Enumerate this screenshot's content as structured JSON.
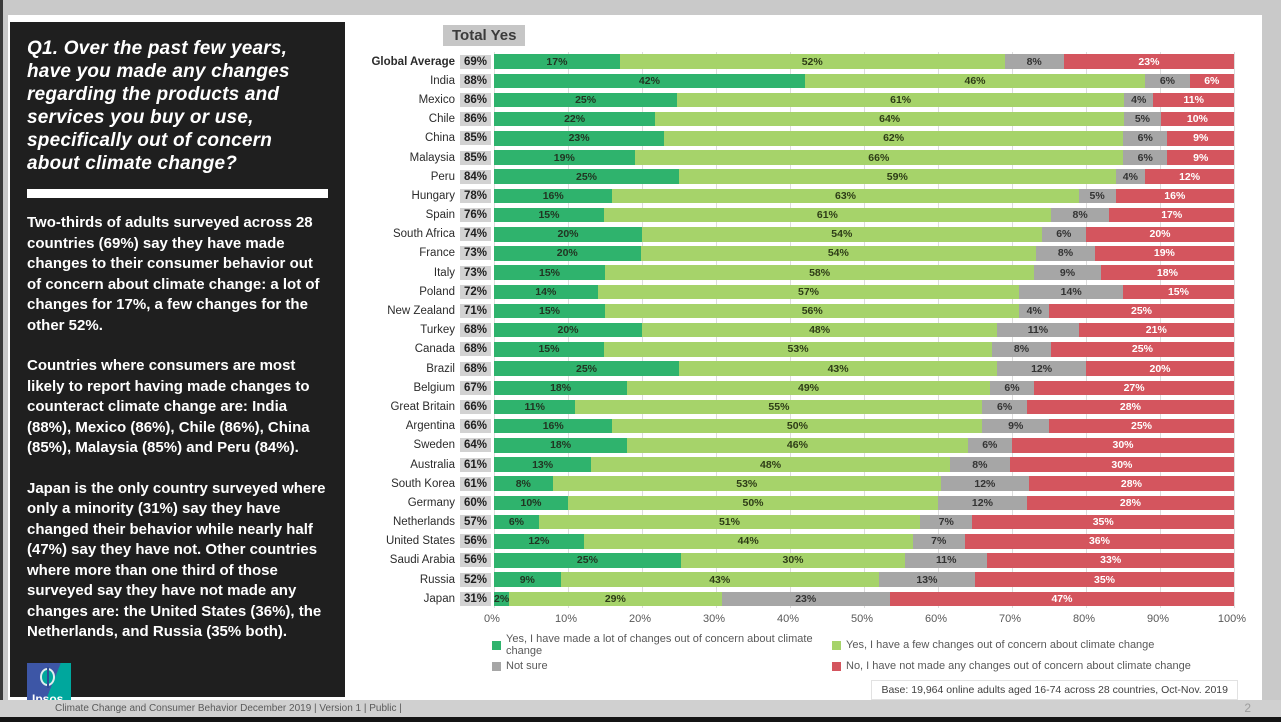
{
  "sidebar": {
    "question_title": "Q1. Over the past few years, have you made any changes regarding the products and services you buy or use, specifically out of concern about climate change?",
    "paragraphs": [
      "Two-thirds of adults surveyed across 28 countries (69%) say they have made changes to their consumer behavior out of concern about climate change: a lot of changes for 17%, a few changes for the other 52%.",
      "Countries where consumers are most likely to report having made changes to counteract climate change are: India (88%), Mexico (86%), Chile (86%), China (85%), Malaysia (85%) and Peru (84%).",
      "Japan is the only country surveyed where only a minority (31%) say they have changed their behavior while nearly half (47%) say they have not. Other countries where more than one third of those surveyed say they have not made any changes are: the United States (36%), the Netherlands, and Russia (35% both)."
    ],
    "logo_text": "Ipsos"
  },
  "footer": {
    "text": "Climate Change and Consumer Behavior December 2019 | Version 1 | Public |",
    "page_number": "2"
  },
  "chart_data": {
    "type": "bar",
    "orientation": "horizontal",
    "stacked": true,
    "title": "Total Yes",
    "x_ticks": [
      "0%",
      "10%",
      "20%",
      "30%",
      "40%",
      "50%",
      "60%",
      "70%",
      "80%",
      "90%",
      "100%"
    ],
    "xlim": [
      0,
      100
    ],
    "grid": true,
    "legend_position": "bottom",
    "base_note": "Base: 19,964 online adults aged 16-74 across 28 countries, Oct-Nov. 2019",
    "series": [
      {
        "key": "a-lot-of-changes",
        "label": "Yes, I have made a lot of changes out of concern about climate change",
        "color": "#2fb36d",
        "text_color": "#213522"
      },
      {
        "key": "a-few-changes",
        "label": "Yes, I have a few changes out of concern about climate change",
        "color": "#a6d36a",
        "text_color": "#2e3d17"
      },
      {
        "key": "not-sure",
        "label": "Not sure",
        "color": "#a6a6a6",
        "text_color": "#333333"
      },
      {
        "key": "no-changes",
        "label": "No, I have not made any changes out of concern about climate change",
        "color": "#d4555e",
        "text_color": "#ffffff"
      }
    ],
    "rows": [
      {
        "country": "Global Average",
        "total_yes": "69%",
        "values": [
          17,
          52,
          8,
          23
        ]
      },
      {
        "country": "India",
        "total_yes": "88%",
        "values": [
          42,
          46,
          6,
          6
        ]
      },
      {
        "country": "Mexico",
        "total_yes": "86%",
        "values": [
          25,
          61,
          4,
          11
        ]
      },
      {
        "country": "Chile",
        "total_yes": "86%",
        "values": [
          22,
          64,
          5,
          10
        ]
      },
      {
        "country": "China",
        "total_yes": "85%",
        "values": [
          23,
          62,
          6,
          9
        ]
      },
      {
        "country": "Malaysia",
        "total_yes": "85%",
        "values": [
          19,
          66,
          6,
          9
        ]
      },
      {
        "country": "Peru",
        "total_yes": "84%",
        "values": [
          25,
          59,
          4,
          12
        ]
      },
      {
        "country": "Hungary",
        "total_yes": "78%",
        "values": [
          16,
          63,
          5,
          16
        ]
      },
      {
        "country": "Spain",
        "total_yes": "76%",
        "values": [
          15,
          61,
          8,
          17
        ]
      },
      {
        "country": "South Africa",
        "total_yes": "74%",
        "values": [
          20,
          54,
          6,
          20
        ]
      },
      {
        "country": "France",
        "total_yes": "73%",
        "values": [
          20,
          54,
          8,
          19
        ]
      },
      {
        "country": "Italy",
        "total_yes": "73%",
        "values": [
          15,
          58,
          9,
          18
        ]
      },
      {
        "country": "Poland",
        "total_yes": "72%",
        "values": [
          14,
          57,
          14,
          15
        ]
      },
      {
        "country": "New Zealand",
        "total_yes": "71%",
        "values": [
          15,
          56,
          4,
          25
        ]
      },
      {
        "country": "Turkey",
        "total_yes": "68%",
        "values": [
          20,
          48,
          11,
          21
        ]
      },
      {
        "country": "Canada",
        "total_yes": "68%",
        "values": [
          15,
          53,
          8,
          25
        ]
      },
      {
        "country": "Brazil",
        "total_yes": "68%",
        "values": [
          25,
          43,
          12,
          20
        ]
      },
      {
        "country": "Belgium",
        "total_yes": "67%",
        "values": [
          18,
          49,
          6,
          27
        ]
      },
      {
        "country": "Great Britain",
        "total_yes": "66%",
        "values": [
          11,
          55,
          6,
          28
        ]
      },
      {
        "country": "Argentina",
        "total_yes": "66%",
        "values": [
          16,
          50,
          9,
          25
        ]
      },
      {
        "country": "Sweden",
        "total_yes": "64%",
        "values": [
          18,
          46,
          6,
          30
        ]
      },
      {
        "country": "Australia",
        "total_yes": "61%",
        "values": [
          13,
          48,
          8,
          30
        ]
      },
      {
        "country": "South Korea",
        "total_yes": "61%",
        "values": [
          8,
          53,
          12,
          28
        ]
      },
      {
        "country": "Germany",
        "total_yes": "60%",
        "values": [
          10,
          50,
          12,
          28
        ]
      },
      {
        "country": "Netherlands",
        "total_yes": "57%",
        "values": [
          6,
          51,
          7,
          35
        ]
      },
      {
        "country": "United States",
        "total_yes": "56%",
        "values": [
          12,
          44,
          7,
          36
        ]
      },
      {
        "country": "Saudi Arabia",
        "total_yes": "56%",
        "values": [
          25,
          30,
          11,
          33
        ]
      },
      {
        "country": "Russia",
        "total_yes": "52%",
        "values": [
          9,
          43,
          13,
          35
        ]
      },
      {
        "country": "Japan",
        "total_yes": "31%",
        "values": [
          2,
          29,
          23,
          47
        ]
      }
    ]
  }
}
